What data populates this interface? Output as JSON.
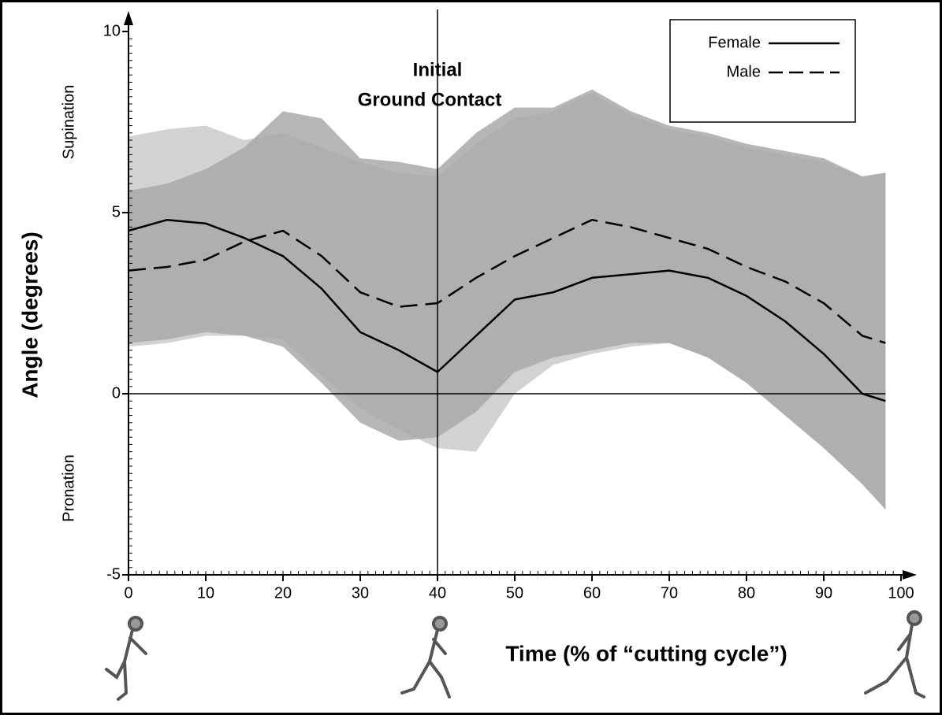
{
  "chart_data": {
    "type": "line",
    "xlabel": "Time (% of “cutting cycle”)",
    "ylabel": "Angle (degrees)",
    "y_region_labels": [
      "Supination",
      "Pronation"
    ],
    "annotation": {
      "text": [
        "Initial",
        "Ground Contact"
      ],
      "x": 40
    },
    "x": [
      0,
      5,
      10,
      15,
      20,
      25,
      30,
      35,
      40,
      45,
      50,
      55,
      60,
      65,
      70,
      75,
      80,
      85,
      90,
      95,
      98
    ],
    "series": [
      {
        "name": "Female",
        "color": "#000000",
        "dash": "solid",
        "band_color": "#a9a9a9",
        "values": [
          4.5,
          4.8,
          4.7,
          4.3,
          3.8,
          2.9,
          1.7,
          1.2,
          0.6,
          1.6,
          2.6,
          2.8,
          3.2,
          3.3,
          3.4,
          3.2,
          2.7,
          2.0,
          1.1,
          0.0,
          -0.2
        ],
        "sd_upper": [
          5.6,
          5.8,
          6.2,
          6.8,
          7.8,
          7.6,
          6.5,
          6.4,
          6.2,
          7.2,
          7.9,
          7.9,
          8.4,
          7.8,
          7.4,
          7.2,
          6.9,
          6.7,
          6.5,
          6.0,
          6.1
        ],
        "sd_lower": [
          1.4,
          1.5,
          1.7,
          1.6,
          1.3,
          0.3,
          -0.8,
          -1.3,
          -1.2,
          -0.5,
          0.6,
          1.0,
          1.2,
          1.4,
          1.4,
          1.0,
          0.3,
          -0.6,
          -1.5,
          -2.5,
          -3.2
        ]
      },
      {
        "name": "Male",
        "color": "#000000",
        "dash": "dashed",
        "band_color": "#d2d2d2",
        "values": [
          3.4,
          3.5,
          3.7,
          4.2,
          4.5,
          3.8,
          2.8,
          2.4,
          2.5,
          3.2,
          3.8,
          4.3,
          4.8,
          4.6,
          4.3,
          4.0,
          3.5,
          3.1,
          2.5,
          1.6,
          1.4
        ],
        "sd_upper": [
          7.1,
          7.3,
          7.4,
          7.0,
          7.2,
          6.8,
          6.4,
          6.1,
          6.0,
          6.9,
          7.6,
          7.8,
          8.3,
          7.7,
          7.3,
          7.1,
          6.8,
          6.6,
          6.4,
          6.0,
          6.1
        ],
        "sd_lower": [
          1.3,
          1.4,
          1.6,
          1.6,
          1.5,
          0.5,
          -0.4,
          -1.0,
          -1.5,
          -1.6,
          0.0,
          0.8,
          1.1,
          1.3,
          1.4,
          1.0,
          0.3,
          -0.6,
          -1.5,
          -2.5,
          -3.2
        ]
      }
    ],
    "xlim": [
      0,
      100
    ],
    "ylim": [
      -5,
      10
    ],
    "xticks": [
      0,
      10,
      20,
      30,
      40,
      50,
      60,
      70,
      80,
      90,
      100
    ],
    "yticks": [
      -5,
      0,
      5,
      10
    ],
    "legend": "upper right"
  }
}
